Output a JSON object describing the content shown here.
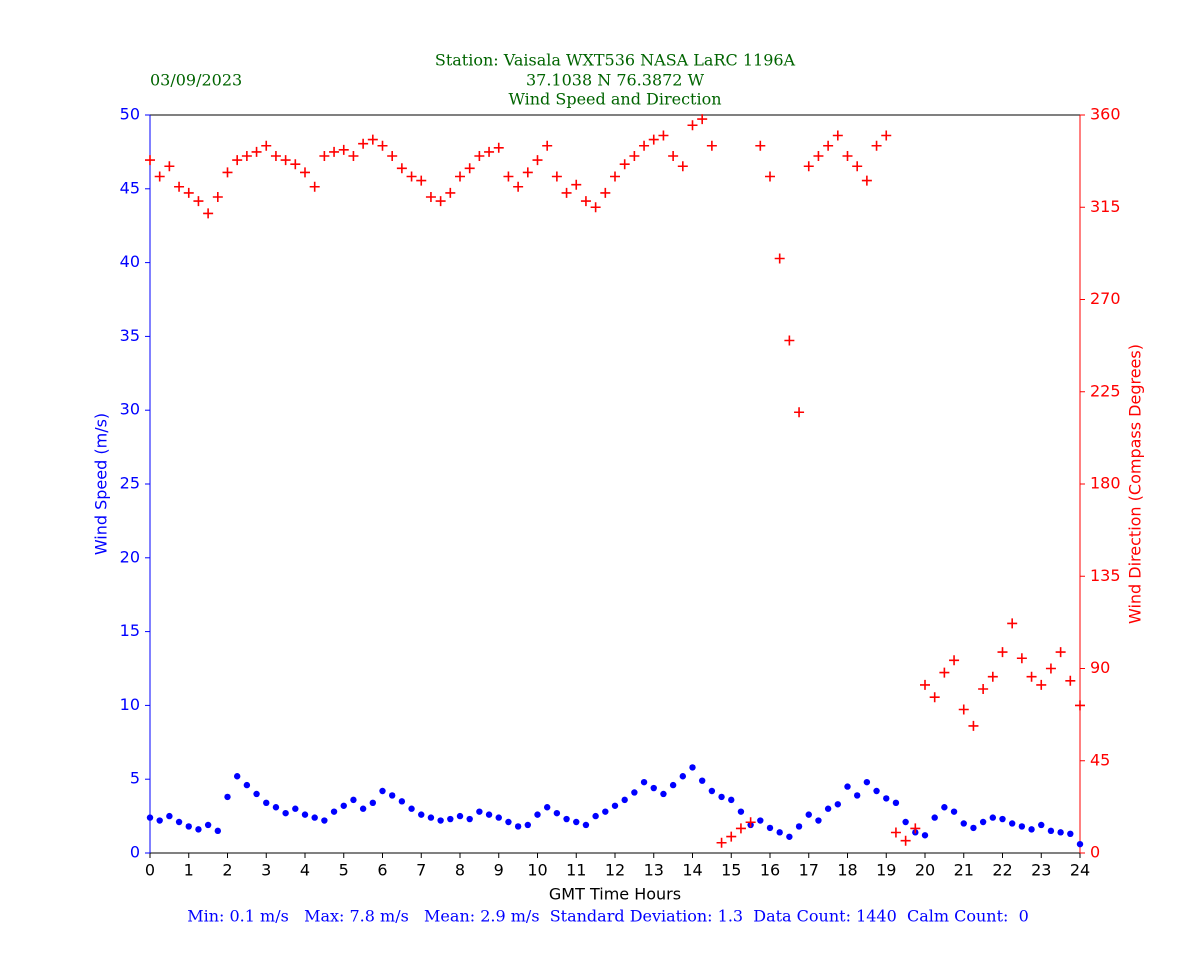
{
  "chart_data": {
    "type": "scatter",
    "title_lines": [
      "Station:  Vaisala WXT536  NASA LaRC 1196A",
      "37.1038 N 76.3872 W",
      "Wind Speed and Direction"
    ],
    "date": "03/09/2023",
    "xlabel": "GMT Time Hours",
    "ylabel": "Wind Speed (m/s)",
    "y2label": "Wind Direction (Compass Degrees)",
    "stats": "Min: 0.1 m/s   Max: 7.8 m/s   Mean: 2.9 m/s  Standard Deviation: 1.3  Data Count: 1440  Calm Count:  0",
    "xlim": [
      0,
      24
    ],
    "xticks": [
      0,
      1,
      2,
      3,
      4,
      5,
      6,
      7,
      8,
      9,
      10,
      11,
      12,
      13,
      14,
      15,
      16,
      17,
      18,
      19,
      20,
      21,
      22,
      23,
      24
    ],
    "ylim": [
      0,
      50
    ],
    "yticks": [
      0,
      5,
      10,
      15,
      20,
      25,
      30,
      35,
      40,
      45,
      50
    ],
    "y2lim": [
      0,
      360
    ],
    "y2ticks": [
      0,
      45,
      90,
      135,
      180,
      225,
      270,
      315,
      360
    ],
    "x": [
      0,
      0.25,
      0.5,
      0.75,
      1,
      1.25,
      1.5,
      1.75,
      2,
      2.25,
      2.5,
      2.75,
      3,
      3.25,
      3.5,
      3.75,
      4,
      4.25,
      4.5,
      4.75,
      5,
      5.25,
      5.5,
      5.75,
      6,
      6.25,
      6.5,
      6.75,
      7,
      7.25,
      7.5,
      7.75,
      8,
      8.25,
      8.5,
      8.75,
      9,
      9.25,
      9.5,
      9.75,
      10,
      10.25,
      10.5,
      10.75,
      11,
      11.25,
      11.5,
      11.75,
      12,
      12.25,
      12.5,
      12.75,
      13,
      13.25,
      13.5,
      13.75,
      14,
      14.25,
      14.5,
      14.75,
      15,
      15.25,
      15.5,
      15.75,
      16,
      16.25,
      16.5,
      16.75,
      17,
      17.25,
      17.5,
      17.75,
      18,
      18.25,
      18.5,
      18.75,
      19,
      19.25,
      19.5,
      19.75,
      20,
      20.25,
      20.5,
      20.75,
      21,
      21.25,
      21.5,
      21.75,
      22,
      22.25,
      22.5,
      22.75,
      23,
      23.25,
      23.5,
      23.75,
      24
    ],
    "series": [
      {
        "name": "Wind Speed",
        "color": "#0000ff",
        "marker": "dot",
        "values": [
          2.4,
          2.2,
          2.5,
          2.1,
          1.8,
          1.6,
          1.9,
          1.5,
          3.8,
          5.2,
          4.6,
          4.0,
          3.4,
          3.1,
          2.7,
          3.0,
          2.6,
          2.4,
          2.2,
          2.8,
          3.2,
          3.6,
          3.0,
          3.4,
          4.2,
          3.9,
          3.5,
          3.0,
          2.6,
          2.4,
          2.2,
          2.3,
          2.5,
          2.3,
          2.8,
          2.6,
          2.4,
          2.1,
          1.8,
          1.9,
          2.6,
          3.1,
          2.7,
          2.3,
          2.1,
          1.9,
          2.5,
          2.8,
          3.2,
          3.6,
          4.1,
          4.8,
          4.4,
          4.0,
          4.6,
          5.2,
          5.8,
          4.9,
          4.2,
          3.8,
          3.6,
          2.8,
          1.9,
          2.2,
          1.7,
          1.4,
          1.1,
          1.8,
          2.6,
          2.2,
          3.0,
          3.3,
          4.5,
          3.9,
          4.8,
          4.2,
          3.7,
          3.4,
          2.1,
          1.4,
          1.2,
          2.4,
          3.1,
          2.8,
          2.0,
          1.7,
          2.1,
          2.4,
          2.3,
          2.0,
          1.8,
          1.6,
          1.9,
          1.5,
          1.4,
          1.3,
          0.6
        ]
      },
      {
        "name": "Wind Direction",
        "color": "#ff0000",
        "marker": "plus",
        "axis": "y2",
        "values": [
          338,
          330,
          335,
          325,
          322,
          318,
          312,
          320,
          332,
          338,
          340,
          342,
          345,
          340,
          338,
          336,
          332,
          325,
          340,
          342,
          343,
          340,
          346,
          348,
          345,
          340,
          334,
          330,
          328,
          320,
          318,
          322,
          330,
          334,
          340,
          342,
          344,
          330,
          325,
          332,
          338,
          345,
          330,
          322,
          326,
          318,
          315,
          322,
          330,
          336,
          340,
          345,
          348,
          350,
          340,
          335,
          355,
          358,
          345,
          5,
          8,
          12,
          15,
          345,
          330,
          290,
          250,
          215,
          335,
          340,
          345,
          350,
          340,
          335,
          328,
          345,
          350,
          10,
          6,
          12,
          82,
          76,
          88,
          94,
          70,
          62,
          80,
          86,
          98,
          112,
          95,
          86,
          82,
          90,
          98,
          84,
          72
        ]
      }
    ]
  }
}
